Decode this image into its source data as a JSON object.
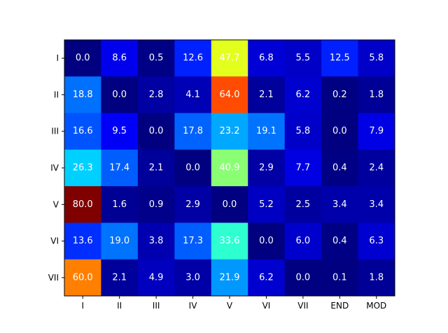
{
  "chart_data": {
    "type": "heatmap",
    "colormap": "jet",
    "vmin": 0.0,
    "vmax": 80.0,
    "grid": false,
    "x_categories": [
      "I",
      "II",
      "III",
      "IV",
      "V",
      "VI",
      "VII",
      "END",
      "MOD"
    ],
    "y_categories": [
      "I",
      "II",
      "III",
      "IV",
      "V",
      "VI",
      "VII"
    ],
    "values": [
      [
        0.0,
        8.6,
        0.5,
        12.6,
        47.7,
        6.8,
        5.5,
        12.5,
        5.8
      ],
      [
        18.8,
        0.0,
        2.8,
        4.1,
        64.0,
        2.1,
        6.2,
        0.2,
        1.8
      ],
      [
        16.6,
        9.5,
        0.0,
        17.8,
        23.2,
        19.1,
        5.8,
        0.0,
        7.9
      ],
      [
        26.3,
        17.4,
        2.1,
        0.0,
        40.9,
        2.9,
        7.7,
        0.4,
        2.4
      ],
      [
        80.0,
        1.6,
        0.9,
        2.9,
        0.0,
        5.2,
        2.5,
        3.4,
        3.4
      ],
      [
        13.6,
        19.0,
        3.8,
        17.3,
        33.6,
        0.0,
        6.0,
        0.4,
        6.3
      ],
      [
        60.0,
        2.1,
        4.9,
        3.0,
        21.9,
        6.2,
        0.0,
        0.1,
        1.8
      ]
    ],
    "labels": [
      [
        "0.0",
        "8.6",
        "0.5",
        "12.6",
        "47.7",
        "6.8",
        "5.5",
        "12.5",
        "5.8"
      ],
      [
        "18.8",
        "0.0",
        "2.8",
        "4.1",
        "64.0",
        "2.1",
        "6.2",
        "0.2",
        "1.8"
      ],
      [
        "16.6",
        "9.5",
        "0.0",
        "17.8",
        "23.2",
        "19.1",
        "5.8",
        "0.0",
        "7.9"
      ],
      [
        "26.3",
        "17.4",
        "2.1",
        "0.0",
        "40.9",
        "2.9",
        "7.7",
        "0.4",
        "2.4"
      ],
      [
        "80.0",
        "1.6",
        "0.9",
        "2.9",
        "0.0",
        "5.2",
        "2.5",
        "3.4",
        "3.4"
      ],
      [
        "13.6",
        "19.0",
        "3.8",
        "17.3",
        "33.6",
        "0.0",
        "6.0",
        "0.4",
        "6.3"
      ],
      [
        "60.0",
        "2.1",
        "4.9",
        "3.0",
        "21.9",
        "6.2",
        "0.0",
        "0.1",
        "1.8"
      ]
    ],
    "label_color": "#ffffff"
  }
}
